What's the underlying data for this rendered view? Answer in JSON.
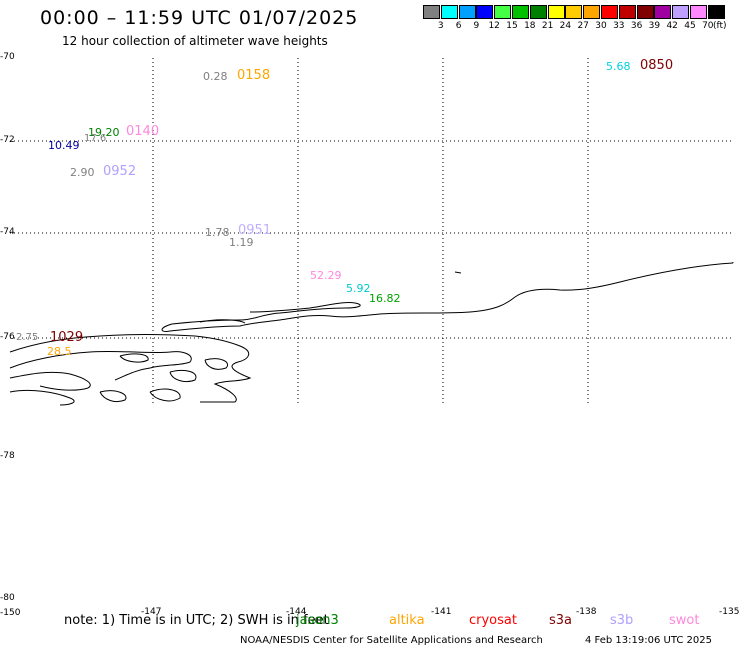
{
  "title": "00:00 – 11:59 UTC 01/07/2025",
  "subtitle": "12 hour collection of altimeter wave heights",
  "colorbar": {
    "unit": "(ft)",
    "labels": [
      "3",
      "6",
      "9",
      "12",
      "15",
      "18",
      "21",
      "24",
      "27",
      "30",
      "33",
      "36",
      "39",
      "42",
      "45",
      "70"
    ],
    "colors": [
      "#808080",
      "#00ffff",
      "#00a0ff",
      "#0000ff",
      "#44ff44",
      "#00c000",
      "#008000",
      "#ffff00",
      "#ffcc00",
      "#ffa500",
      "#ff0000",
      "#c00000",
      "#800000",
      "#a000a0",
      "#c0a0ff",
      "#ff88ff",
      "#000000"
    ]
  },
  "axes": {
    "lat_labels": [
      "-70",
      "-72",
      "-74",
      "-76",
      "-78",
      "-80"
    ],
    "lon_labels": [
      "-150",
      "-147",
      "-144",
      "-141",
      "-138",
      "-135"
    ]
  },
  "observations": [
    {
      "value": "0.28",
      "color": "#808080"
    },
    {
      "time": "0158",
      "color": "#ffa500"
    },
    {
      "value": "5.68",
      "color": "#00d0e0"
    },
    {
      "time": "0850",
      "color": "#800000"
    },
    {
      "value": "19.20",
      "color": "#008000"
    },
    {
      "value": "17.6",
      "color": "#808080"
    },
    {
      "time": "0140",
      "color": "#ff88dd"
    },
    {
      "value": "10.49",
      "color": "#0000a0"
    },
    {
      "value": "2.90",
      "color": "#808080"
    },
    {
      "time": "0952",
      "color": "#b0a0ff"
    },
    {
      "value": "1.78",
      "color": "#808080"
    },
    {
      "time": "0951",
      "color": "#c0b0ff"
    },
    {
      "value": "1.19",
      "color": "#808080"
    },
    {
      "value": "52.29",
      "color": "#ff88dd"
    },
    {
      "value": "5.92",
      "color": "#00c8d0"
    },
    {
      "value": "16.82",
      "color": "#00a000"
    },
    {
      "value": "2.75",
      "color": "#808080"
    },
    {
      "time": "1029",
      "color": "#800000"
    },
    {
      "value": "28.5",
      "color": "#ffa500"
    }
  ],
  "note": "note: 1) Time is in UTC; 2) SWH is in feet",
  "satellites": [
    {
      "name": "jason3",
      "color": "#008000"
    },
    {
      "name": "altika",
      "color": "#ffa500"
    },
    {
      "name": "cryosat",
      "color": "#ff0000"
    },
    {
      "name": "s3a",
      "color": "#800000"
    },
    {
      "name": "s3b",
      "color": "#b0a0ff"
    },
    {
      "name": "swot",
      "color": "#ff88dd"
    }
  ],
  "credit": "NOAA/NESDIS Center for Satellite Applications and Research",
  "timestamp": "4 Feb 13:19:06 UTC 2025"
}
